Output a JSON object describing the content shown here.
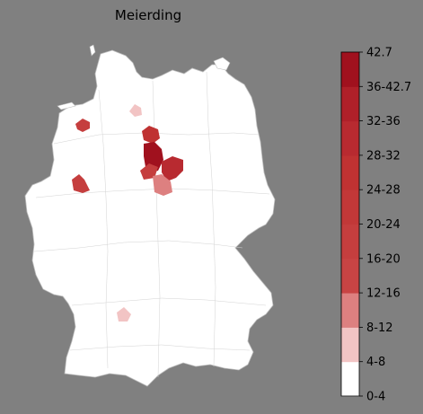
{
  "title": "Meierding",
  "colors": {
    "background": "#808080",
    "land": "#ffffff",
    "border": "#bdbdbd"
  },
  "legend": {
    "type": "stepped-colorbar",
    "bins": [
      {
        "label": "0-4",
        "color": "#ffffff"
      },
      {
        "label": "4-8",
        "color": "#f2c4c4"
      },
      {
        "label": "8-12",
        "color": "#dd8080"
      },
      {
        "label": "12-16",
        "color": "#c84444"
      },
      {
        "label": "16-20",
        "color": "#c53e3e"
      },
      {
        "label": "20-24",
        "color": "#c23838"
      },
      {
        "label": "24-28",
        "color": "#bf3232"
      },
      {
        "label": "28-32",
        "color": "#b82a30"
      },
      {
        "label": "32-36",
        "color": "#af2029"
      },
      {
        "label": "36-42.7",
        "color": "#a0111e"
      }
    ],
    "max_label": "42.7"
  },
  "regions": [
    {
      "name": "highlighted-district-hamburg",
      "bin": 1
    },
    {
      "name": "highlighted-district-emsland-north",
      "bin": 4
    },
    {
      "name": "highlighted-district-muenster",
      "bin": 4
    },
    {
      "name": "highlighted-district-hannover-north",
      "bin": 6
    },
    {
      "name": "highlighted-district-hannover",
      "bin": 9
    },
    {
      "name": "highlighted-district-hildesheim",
      "bin": 4
    },
    {
      "name": "highlighted-district-braunschweig",
      "bin": 7
    },
    {
      "name": "highlighted-district-goettingen",
      "bin": 2
    },
    {
      "name": "highlighted-district-stuttgart",
      "bin": 1
    }
  ]
}
